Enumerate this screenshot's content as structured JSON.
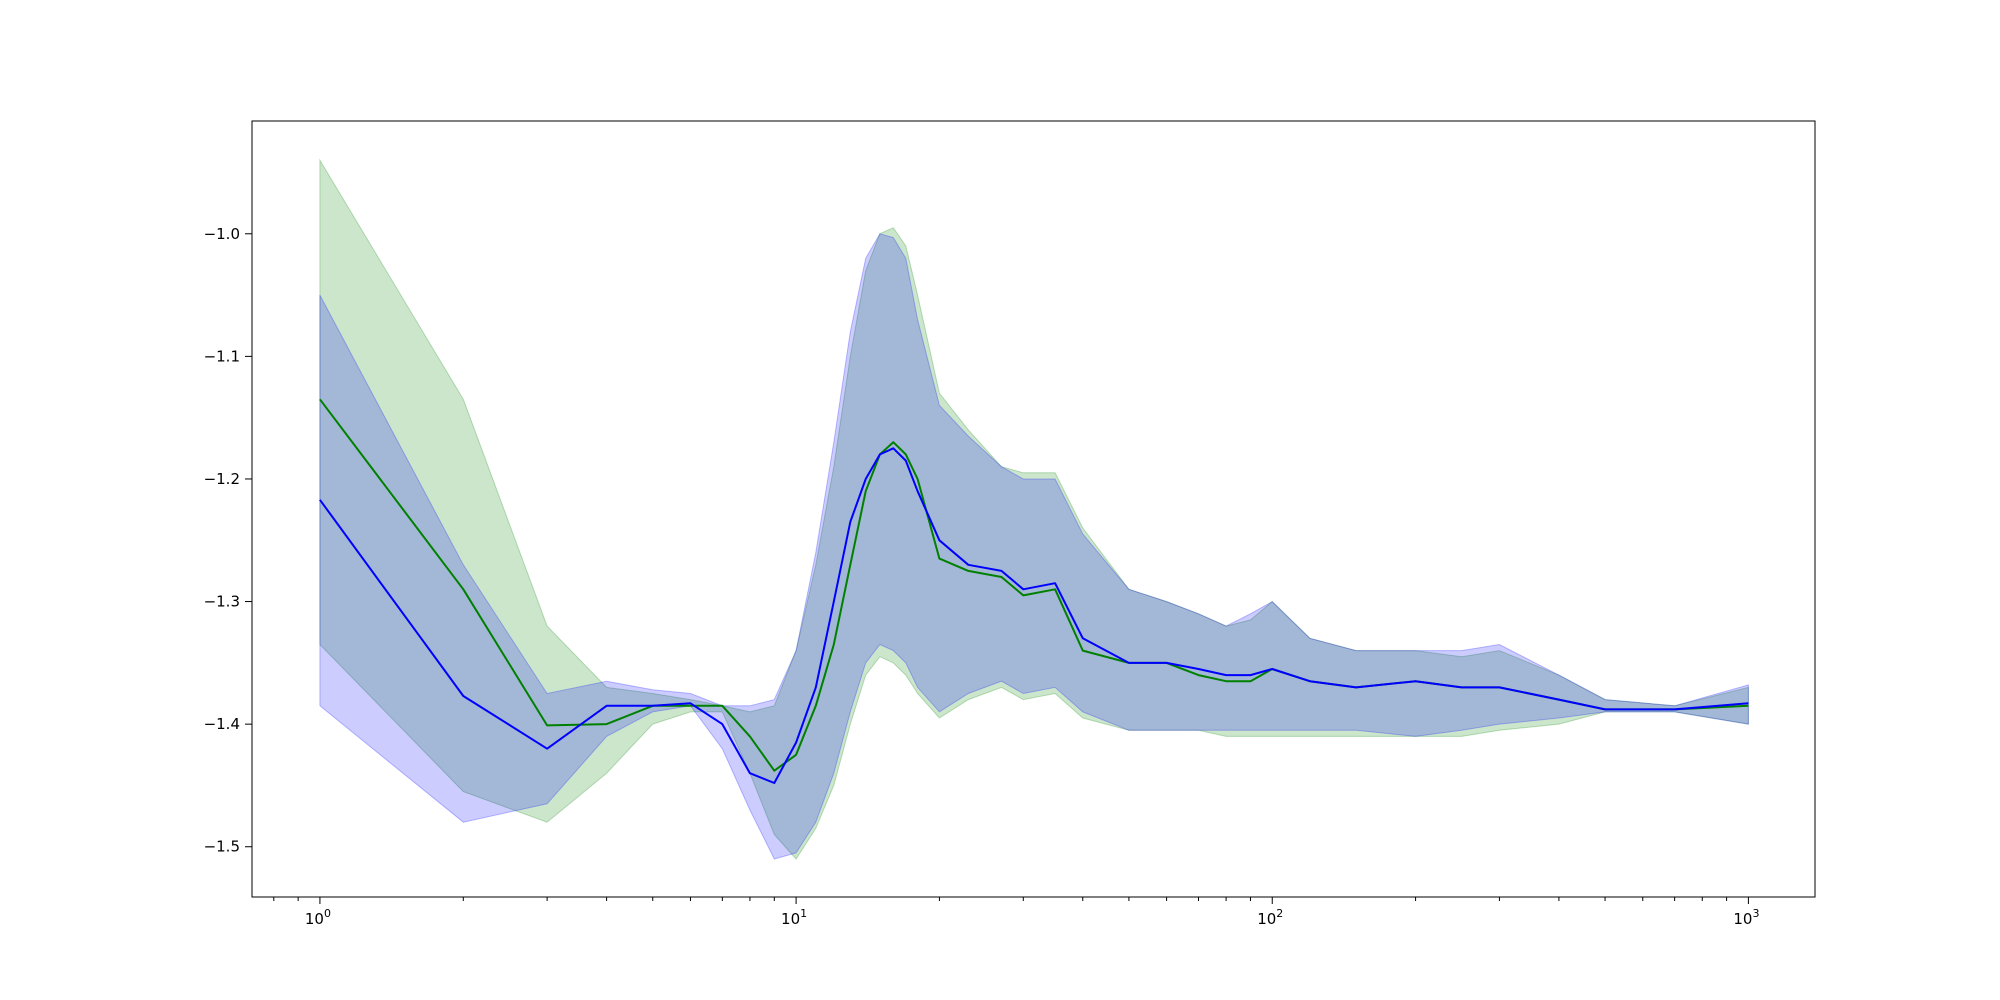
{
  "chart_data": {
    "type": "line",
    "xscale": "log",
    "xlim": [
      0.72,
      1380
    ],
    "ylim": [
      -1.541,
      -0.908
    ],
    "grid": false,
    "x_ticks": [
      {
        "value": 1,
        "base": "10",
        "exp": "0"
      },
      {
        "value": 10,
        "base": "10",
        "exp": "1"
      },
      {
        "value": 100,
        "base": "10",
        "exp": "2"
      },
      {
        "value": 1000,
        "base": "10",
        "exp": "3"
      }
    ],
    "y_ticks": [
      {
        "value": -1.0,
        "label": "−1.0"
      },
      {
        "value": -1.1,
        "label": "−1.1"
      },
      {
        "value": -1.2,
        "label": "−1.2"
      },
      {
        "value": -1.3,
        "label": "−1.3"
      },
      {
        "value": -1.4,
        "label": "−1.4"
      },
      {
        "value": -1.5,
        "label": "−1.5"
      }
    ],
    "series": [
      {
        "color": "#008000",
        "band_color": "#008000",
        "band_opacity": 0.2,
        "x": [
          1,
          2,
          3,
          4,
          5,
          6,
          7,
          8,
          9,
          10,
          11,
          12,
          13,
          14,
          15,
          16,
          17,
          18,
          20,
          23,
          27,
          30,
          35,
          40,
          50,
          60,
          70,
          80,
          90,
          100,
          120,
          150,
          200,
          250,
          300,
          400,
          500,
          700,
          1000
        ],
        "y": [
          -1.135,
          -1.29,
          -1.401,
          -1.4,
          -1.385,
          -1.385,
          -1.385,
          -1.41,
          -1.438,
          -1.425,
          -1.385,
          -1.335,
          -1.27,
          -1.21,
          -1.18,
          -1.17,
          -1.18,
          -1.2,
          -1.265,
          -1.275,
          -1.28,
          -1.295,
          -1.29,
          -1.34,
          -1.35,
          -1.35,
          -1.36,
          -1.365,
          -1.365,
          -1.355,
          -1.365,
          -1.37,
          -1.365,
          -1.37,
          -1.37,
          -1.38,
          -1.388,
          -1.388,
          -1.385
        ],
        "lower": [
          -1.335,
          -1.455,
          -1.48,
          -1.44,
          -1.4,
          -1.39,
          -1.39,
          -1.44,
          -1.49,
          -1.51,
          -1.485,
          -1.45,
          -1.4,
          -1.36,
          -1.345,
          -1.35,
          -1.36,
          -1.375,
          -1.395,
          -1.38,
          -1.37,
          -1.38,
          -1.375,
          -1.395,
          -1.405,
          -1.405,
          -1.405,
          -1.41,
          -1.41,
          -1.41,
          -1.41,
          -1.41,
          -1.41,
          -1.41,
          -1.405,
          -1.4,
          -1.39,
          -1.39,
          -1.4
        ],
        "upper": [
          -0.94,
          -1.135,
          -1.32,
          -1.37,
          -1.375,
          -1.38,
          -1.385,
          -1.39,
          -1.385,
          -1.34,
          -1.27,
          -1.19,
          -1.1,
          -1.03,
          -1.0,
          -0.995,
          -1.01,
          -1.05,
          -1.13,
          -1.16,
          -1.19,
          -1.195,
          -1.195,
          -1.24,
          -1.29,
          -1.3,
          -1.31,
          -1.32,
          -1.315,
          -1.3,
          -1.33,
          -1.34,
          -1.34,
          -1.345,
          -1.34,
          -1.36,
          -1.38,
          -1.385,
          -1.37
        ]
      },
      {
        "color": "#0000ff",
        "band_color": "#0000ff",
        "band_opacity": 0.2,
        "x": [
          1,
          2,
          3,
          4,
          5,
          6,
          7,
          8,
          9,
          10,
          11,
          12,
          13,
          14,
          15,
          16,
          17,
          18,
          20,
          23,
          27,
          30,
          35,
          40,
          50,
          60,
          70,
          80,
          90,
          100,
          120,
          150,
          200,
          250,
          300,
          400,
          500,
          700,
          1000
        ],
        "y": [
          -1.217,
          -1.377,
          -1.42,
          -1.385,
          -1.385,
          -1.383,
          -1.4,
          -1.44,
          -1.448,
          -1.415,
          -1.37,
          -1.3,
          -1.235,
          -1.2,
          -1.18,
          -1.175,
          -1.185,
          -1.21,
          -1.25,
          -1.27,
          -1.275,
          -1.29,
          -1.285,
          -1.33,
          -1.35,
          -1.35,
          -1.355,
          -1.36,
          -1.36,
          -1.355,
          -1.365,
          -1.37,
          -1.365,
          -1.37,
          -1.37,
          -1.38,
          -1.388,
          -1.388,
          -1.383
        ],
        "lower": [
          -1.385,
          -1.48,
          -1.465,
          -1.41,
          -1.39,
          -1.385,
          -1.42,
          -1.47,
          -1.51,
          -1.505,
          -1.48,
          -1.44,
          -1.39,
          -1.35,
          -1.335,
          -1.34,
          -1.35,
          -1.37,
          -1.39,
          -1.375,
          -1.365,
          -1.375,
          -1.37,
          -1.39,
          -1.405,
          -1.405,
          -1.405,
          -1.405,
          -1.405,
          -1.405,
          -1.405,
          -1.405,
          -1.41,
          -1.405,
          -1.4,
          -1.395,
          -1.39,
          -1.39,
          -1.4
        ],
        "upper": [
          -1.05,
          -1.27,
          -1.375,
          -1.365,
          -1.372,
          -1.375,
          -1.385,
          -1.385,
          -1.38,
          -1.34,
          -1.26,
          -1.17,
          -1.08,
          -1.02,
          -1.0,
          -1.003,
          -1.02,
          -1.07,
          -1.14,
          -1.165,
          -1.19,
          -1.2,
          -1.2,
          -1.245,
          -1.29,
          -1.3,
          -1.31,
          -1.32,
          -1.31,
          -1.3,
          -1.33,
          -1.34,
          -1.34,
          -1.34,
          -1.335,
          -1.36,
          -1.38,
          -1.385,
          -1.368
        ]
      }
    ]
  }
}
